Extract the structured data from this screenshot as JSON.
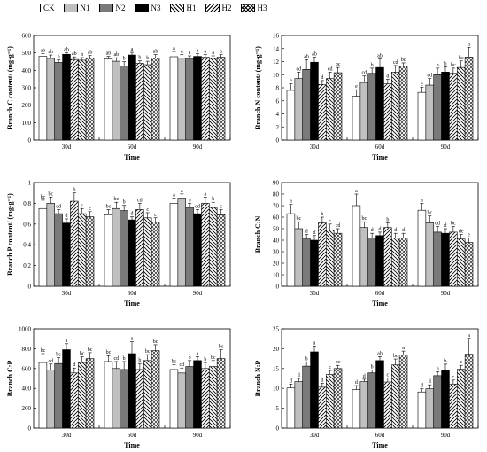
{
  "legend": [
    "CK",
    "N1",
    "N2",
    "N3",
    "H1",
    "H2",
    "H3"
  ],
  "colors": {
    "CK": "#ffffff",
    "N1": "#c0c0c0",
    "N2": "#7a7a7a",
    "N3": "#000000",
    "H1": "pattern-forward-diagonal",
    "H2": "pattern-back-diagonal",
    "H3": "pattern-cross"
  },
  "chart_data": [
    {
      "type": "bar",
      "ylabel": "Branch C content/ (mg·g⁻¹)",
      "xlabel": "Time",
      "categories": [
        "30d",
        "60d",
        "90d"
      ],
      "ylim": [
        0,
        600
      ],
      "yticks": [
        0,
        100,
        200,
        300,
        400,
        500,
        600
      ],
      "series": [
        {
          "name": "CK",
          "values": [
            480,
            465,
            478
          ],
          "errors": [
            15,
            15,
            30
          ],
          "letters": [
            "ab",
            "ab",
            "a"
          ]
        },
        {
          "name": "N1",
          "values": [
            468,
            452,
            470
          ],
          "errors": [
            20,
            20,
            20
          ],
          "letters": [
            "ab",
            "ab",
            "a"
          ]
        },
        {
          "name": "N2",
          "values": [
            445,
            425,
            468
          ],
          "errors": [
            15,
            25,
            15
          ],
          "letters": [
            "b",
            "b",
            "a"
          ]
        },
        {
          "name": "N3",
          "values": [
            492,
            488,
            480
          ],
          "errors": [
            10,
            15,
            15
          ],
          "letters": [
            "ab",
            "a",
            "a"
          ]
        },
        {
          "name": "H1",
          "values": [
            462,
            440,
            475
          ],
          "errors": [
            15,
            15,
            15
          ],
          "letters": [
            "ab",
            "b",
            "a"
          ]
        },
        {
          "name": "H2",
          "values": [
            458,
            432,
            468
          ],
          "errors": [
            15,
            20,
            15
          ],
          "letters": [
            "b",
            "b",
            "a"
          ]
        },
        {
          "name": "H3",
          "values": [
            470,
            470,
            475
          ],
          "errors": [
            15,
            20,
            15
          ],
          "letters": [
            "ab",
            "ab",
            "a"
          ]
        }
      ]
    },
    {
      "type": "bar",
      "ylabel": "Branch N content/ (mg·g⁻¹)",
      "xlabel": "Time",
      "categories": [
        "30d",
        "60d",
        "90d"
      ],
      "ylim": [
        0,
        16
      ],
      "yticks": [
        0,
        2,
        4,
        6,
        8,
        10,
        12,
        14,
        16
      ],
      "series": [
        {
          "name": "CK",
          "values": [
            7.6,
            6.7,
            7.3
          ],
          "errors": [
            1.0,
            1.0,
            0.8
          ],
          "letters": [
            "e",
            "e",
            "e"
          ]
        },
        {
          "name": "N1",
          "values": [
            9.4,
            8.8,
            8.4
          ],
          "errors": [
            1.0,
            1.0,
            1.0
          ],
          "letters": [
            "cd",
            "cd",
            "cd"
          ]
        },
        {
          "name": "N2",
          "values": [
            10.8,
            10.2,
            10.0
          ],
          "errors": [
            1.5,
            0.8,
            1.0
          ],
          "letters": [
            "ab",
            "b",
            "b"
          ]
        },
        {
          "name": "N3",
          "values": [
            11.9,
            11.1,
            10.4
          ],
          "errors": [
            0.8,
            1.3,
            0.8
          ],
          "letters": [
            "ab",
            "ab",
            "b"
          ]
        },
        {
          "name": "H1",
          "values": [
            8.5,
            8.6,
            10.2
          ],
          "errors": [
            0.6,
            0.7,
            0.8
          ],
          "letters": [
            "d",
            "d",
            "bc"
          ]
        },
        {
          "name": "H2",
          "values": [
            9.4,
            10.4,
            11.1
          ],
          "errors": [
            1.0,
            1.0,
            1.0
          ],
          "letters": [
            "cd",
            "cd",
            "bc"
          ]
        },
        {
          "name": "H3",
          "values": [
            10.3,
            11.3,
            12.7
          ],
          "errors": [
            0.8,
            0.5,
            1.5
          ],
          "letters": [
            "bc",
            "bc",
            "a"
          ]
        }
      ]
    },
    {
      "type": "bar",
      "ylabel": "Branch P content/ (mg·g⁻¹)",
      "xlabel": "Time",
      "categories": [
        "30d",
        "60d",
        "90d"
      ],
      "ylim": [
        0,
        1.0
      ],
      "yticks": [
        0,
        0.2,
        0.4,
        0.6,
        0.8,
        1.0
      ],
      "series": [
        {
          "name": "CK",
          "values": [
            0.75,
            0.69,
            0.8
          ],
          "errors": [
            0.08,
            0.05,
            0.05
          ],
          "letters": [
            "bc",
            "bc",
            "a"
          ]
        },
        {
          "name": "N1",
          "values": [
            0.8,
            0.75,
            0.85
          ],
          "errors": [
            0.06,
            0.06,
            0.04
          ],
          "letters": [
            "bc",
            "bc",
            "a"
          ]
        },
        {
          "name": "N2",
          "values": [
            0.7,
            0.73,
            0.76
          ],
          "errors": [
            0.04,
            0.05,
            0.04
          ],
          "letters": [
            "cd",
            "b",
            "b"
          ]
        },
        {
          "name": "N3",
          "values": [
            0.61,
            0.64,
            0.7
          ],
          "errors": [
            0.04,
            0.03,
            0.04
          ],
          "letters": [
            "d",
            "d",
            "cd"
          ]
        },
        {
          "name": "H1",
          "values": [
            0.82,
            0.74,
            0.8
          ],
          "errors": [
            0.08,
            0.06,
            0.06
          ],
          "letters": [
            "b",
            "cd",
            "a"
          ]
        },
        {
          "name": "H2",
          "values": [
            0.7,
            0.66,
            0.76
          ],
          "errors": [
            0.05,
            0.05,
            0.05
          ],
          "letters": [
            "c",
            "c",
            "b"
          ]
        },
        {
          "name": "H3",
          "values": [
            0.67,
            0.62,
            0.69
          ],
          "errors": [
            0.05,
            0.04,
            0.05
          ],
          "letters": [
            "c",
            "c",
            "c"
          ]
        }
      ]
    },
    {
      "type": "bar",
      "ylabel": "Branch C:N",
      "xlabel": "Time",
      "categories": [
        "30d",
        "60d",
        "90d"
      ],
      "ylim": [
        0,
        90
      ],
      "yticks": [
        0,
        10,
        20,
        30,
        40,
        50,
        60,
        70,
        80,
        90
      ],
      "series": [
        {
          "name": "CK",
          "values": [
            63,
            70,
            66
          ],
          "errors": [
            8,
            10,
            6
          ],
          "letters": [
            "a",
            "a",
            "a"
          ]
        },
        {
          "name": "N1",
          "values": [
            50,
            51,
            55
          ],
          "errors": [
            6,
            5,
            6
          ],
          "letters": [
            "bc",
            "bc",
            "bc"
          ]
        },
        {
          "name": "N2",
          "values": [
            41,
            42,
            47
          ],
          "errors": [
            4,
            4,
            5
          ],
          "letters": [
            "d",
            "d",
            "cd"
          ]
        },
        {
          "name": "N3",
          "values": [
            40,
            44,
            46
          ],
          "errors": [
            4,
            3,
            4
          ],
          "letters": [
            "d",
            "d",
            "d"
          ]
        },
        {
          "name": "H1",
          "values": [
            55,
            51,
            47
          ],
          "errors": [
            5,
            4,
            5
          ],
          "letters": [
            "b",
            "b",
            "bc"
          ]
        },
        {
          "name": "H2",
          "values": [
            49,
            42,
            41
          ],
          "errors": [
            5,
            4,
            4
          ],
          "letters": [
            "c",
            "d",
            "de"
          ]
        },
        {
          "name": "H3",
          "values": [
            46,
            42,
            38
          ],
          "errors": [
            4,
            4,
            4
          ],
          "letters": [
            "cd",
            "d",
            "e"
          ]
        }
      ]
    },
    {
      "type": "bar",
      "ylabel": "Branch C:P",
      "xlabel": "Time",
      "categories": [
        "30d",
        "60d",
        "90d"
      ],
      "ylim": [
        0,
        1000
      ],
      "yticks": [
        0,
        200,
        400,
        600,
        800,
        1000
      ],
      "series": [
        {
          "name": "CK",
          "values": [
            660,
            670,
            590
          ],
          "errors": [
            90,
            60,
            50
          ],
          "letters": [
            "bc",
            "bc",
            "bc"
          ]
        },
        {
          "name": "N1",
          "values": [
            585,
            600,
            555
          ],
          "errors": [
            60,
            70,
            50
          ],
          "letters": [
            "cd",
            "cd",
            "cd"
          ]
        },
        {
          "name": "N2",
          "values": [
            650,
            590,
            620
          ],
          "errors": [
            60,
            80,
            60
          ],
          "letters": [
            "bc",
            "b",
            "b"
          ]
        },
        {
          "name": "N3",
          "values": [
            790,
            750,
            680
          ],
          "errors": [
            60,
            120,
            40
          ],
          "letters": [
            "a",
            "a",
            "a"
          ]
        },
        {
          "name": "H1",
          "values": [
            555,
            590,
            600
          ],
          "errors": [
            50,
            60,
            60
          ],
          "letters": [
            "d",
            "b",
            "b"
          ]
        },
        {
          "name": "H2",
          "values": [
            660,
            680,
            620
          ],
          "errors": [
            60,
            60,
            60
          ],
          "letters": [
            "bc",
            "bc",
            "bc"
          ]
        },
        {
          "name": "H3",
          "values": [
            700,
            780,
            700
          ],
          "errors": [
            60,
            60,
            90
          ],
          "letters": [
            "bc",
            "bc",
            "bc"
          ]
        }
      ]
    },
    {
      "type": "bar",
      "ylabel": "Branch N:P",
      "xlabel": "Time",
      "categories": [
        "30d",
        "60d",
        "90d"
      ],
      "ylim": [
        0,
        25
      ],
      "yticks": [
        0,
        5,
        10,
        15,
        20,
        25
      ],
      "series": [
        {
          "name": "CK",
          "values": [
            10.1,
            9.7,
            9.1
          ],
          "errors": [
            1.0,
            1.0,
            0.8
          ],
          "letters": [
            "d",
            "d",
            "d"
          ]
        },
        {
          "name": "N1",
          "values": [
            11.7,
            11.7,
            9.9
          ],
          "errors": [
            0.8,
            0.6,
            1.0
          ],
          "letters": [
            "d",
            "d",
            "d"
          ]
        },
        {
          "name": "N2",
          "values": [
            15.6,
            13.9,
            13.2
          ],
          "errors": [
            1.0,
            0.7,
            1.0
          ],
          "letters": [
            "b",
            "b",
            "b"
          ]
        },
        {
          "name": "N3",
          "values": [
            19.2,
            17.0,
            14.6
          ],
          "errors": [
            1.5,
            1.0,
            1.5
          ],
          "letters": [
            "a",
            "ab",
            "b"
          ]
        },
        {
          "name": "H1",
          "values": [
            10.3,
            11.6,
            11.1
          ],
          "errors": [
            1.0,
            1.0,
            1.0
          ],
          "letters": [
            "d",
            "c",
            "c"
          ]
        },
        {
          "name": "H2",
          "values": [
            13.5,
            15.9,
            14.8
          ],
          "errors": [
            1.0,
            1.5,
            1.0
          ],
          "letters": [
            "c",
            "bc",
            "c"
          ]
        },
        {
          "name": "H3",
          "values": [
            15.0,
            18.4,
            18.6
          ],
          "errors": [
            0.8,
            1.0,
            4.0
          ],
          "letters": [
            "bc",
            "a",
            "a"
          ]
        }
      ]
    }
  ]
}
